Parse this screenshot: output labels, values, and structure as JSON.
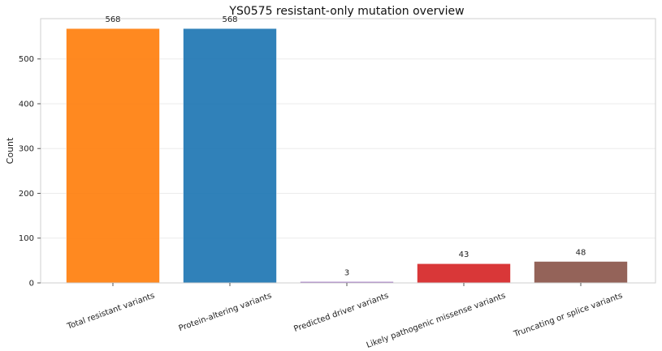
{
  "chart_data": {
    "type": "bar",
    "title": "YS0575 resistant-only mutation overview",
    "xlabel": "",
    "ylabel": "Count",
    "ylim": [
      0,
      590
    ],
    "yticks": [
      0,
      100,
      200,
      300,
      400,
      500
    ],
    "grid": "y",
    "categories": [
      "Total resistant variants",
      "Protein-altering variants",
      "Predicted driver variants",
      "Likely pathogenic missense variants",
      "Truncating or splice variants"
    ],
    "values": [
      568,
      568,
      3,
      43,
      48
    ],
    "data_labels": [
      "568",
      "568",
      "3",
      "43",
      "48"
    ],
    "colors": [
      "#ff7f0e",
      "#1f77b4",
      "#9467bd",
      "#d62728",
      "#8c564b"
    ]
  }
}
